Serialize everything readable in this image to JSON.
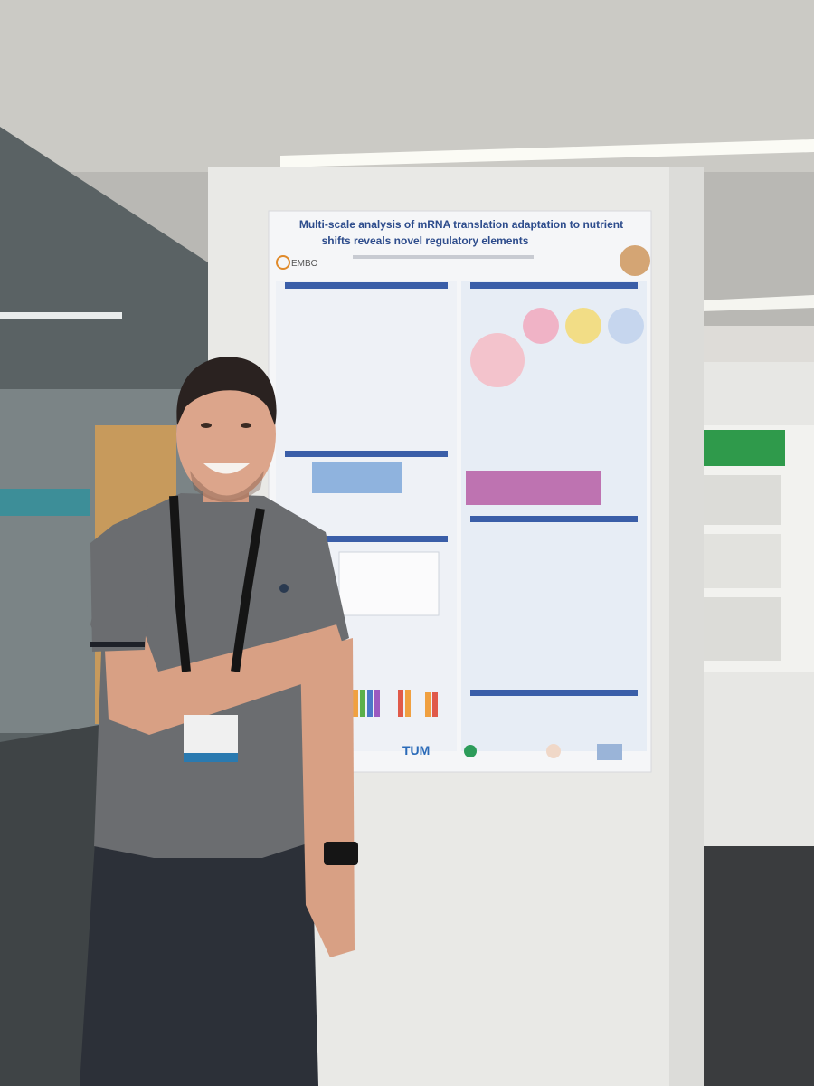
{
  "poster": {
    "title": [
      "Multi-scale analysis of mRNA translation adaptation to nutrient",
      "shifts reveals novel regulatory elements"
    ],
    "logo": "EMBO",
    "footer_logo": "TUM"
  }
}
